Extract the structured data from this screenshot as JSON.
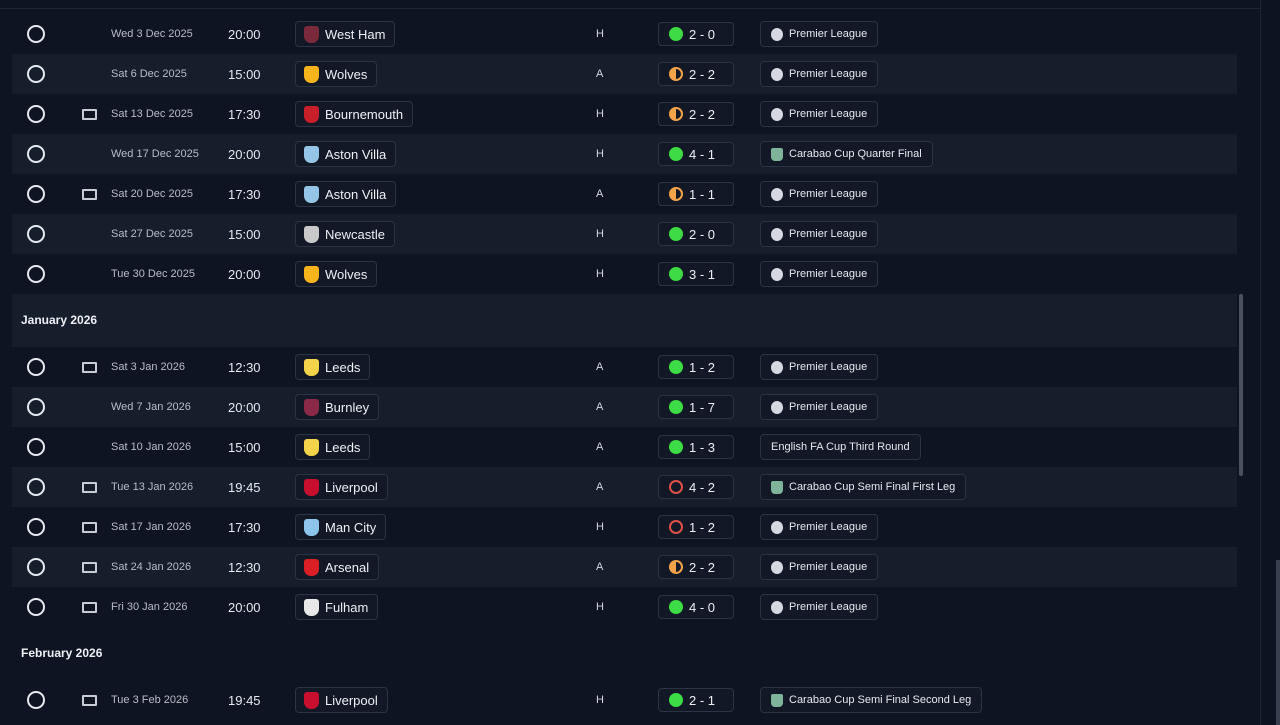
{
  "colors": {
    "win": "#3ddb45",
    "draw": "#f2a34a",
    "loss": "#e0504a"
  },
  "block_dec": [
    {
      "tv": false,
      "date": "Wed 3 Dec 2025",
      "time": "20:00",
      "team": "West Ham",
      "crest": "#7a2a3a",
      "venue": "H",
      "result": "W",
      "score": "2 - 0",
      "comp": "Premier League",
      "comp_icon": "pl"
    },
    {
      "tv": false,
      "date": "Sat 6 Dec 2025",
      "time": "15:00",
      "team": "Wolves",
      "crest": "#f4b41a",
      "venue": "A",
      "result": "D",
      "score": "2 - 2",
      "comp": "Premier League",
      "comp_icon": "pl"
    },
    {
      "tv": true,
      "date": "Sat 13 Dec 2025",
      "time": "17:30",
      "team": "Bournemouth",
      "crest": "#c8202a",
      "venue": "H",
      "result": "D",
      "score": "2 - 2",
      "comp": "Premier League",
      "comp_icon": "pl"
    },
    {
      "tv": false,
      "date": "Wed 17 Dec 2025",
      "time": "20:00",
      "team": "Aston Villa",
      "crest": "#94c4e6",
      "venue": "H",
      "result": "W",
      "score": "4 - 1",
      "comp": "Carabao Cup Quarter Final",
      "comp_icon": "cup"
    },
    {
      "tv": true,
      "date": "Sat 20 Dec 2025",
      "time": "17:30",
      "team": "Aston Villa",
      "crest": "#94c4e6",
      "venue": "A",
      "result": "D",
      "score": "1 - 1",
      "comp": "Premier League",
      "comp_icon": "pl"
    },
    {
      "tv": false,
      "date": "Sat 27 Dec 2025",
      "time": "15:00",
      "team": "Newcastle",
      "crest": "#c9c9c9",
      "venue": "H",
      "result": "W",
      "score": "2 - 0",
      "comp": "Premier League",
      "comp_icon": "pl"
    },
    {
      "tv": false,
      "date": "Tue 30 Dec 2025",
      "time": "20:00",
      "team": "Wolves",
      "crest": "#f4b41a",
      "venue": "H",
      "result": "W",
      "score": "3 - 1",
      "comp": "Premier League",
      "comp_icon": "pl"
    }
  ],
  "month_jan": "January 2026",
  "block_jan": [
    {
      "tv": true,
      "date": "Sat 3 Jan 2026",
      "time": "12:30",
      "team": "Leeds",
      "crest": "#f3d34a",
      "venue": "A",
      "result": "W",
      "score": "1 - 2",
      "comp": "Premier League",
      "comp_icon": "pl"
    },
    {
      "tv": false,
      "date": "Wed 7 Jan 2026",
      "time": "20:00",
      "team": "Burnley",
      "crest": "#8a2a48",
      "venue": "A",
      "result": "W",
      "score": "1 - 7",
      "comp": "Premier League",
      "comp_icon": "pl"
    },
    {
      "tv": false,
      "date": "Sat 10 Jan 2026",
      "time": "15:00",
      "team": "Leeds",
      "crest": "#f3d34a",
      "venue": "A",
      "result": "W",
      "score": "1 - 3",
      "comp": "English FA Cup Third Round",
      "comp_icon": ""
    },
    {
      "tv": true,
      "date": "Tue 13 Jan 2026",
      "time": "19:45",
      "team": "Liverpool",
      "crest": "#c8102e",
      "venue": "A",
      "result": "L",
      "score": "4 - 2",
      "comp": "Carabao Cup Semi Final First Leg",
      "comp_icon": "cup"
    },
    {
      "tv": true,
      "date": "Sat 17 Jan 2026",
      "time": "17:30",
      "team": "Man City",
      "crest": "#8ec5ec",
      "venue": "H",
      "result": "L",
      "score": "1 - 2",
      "comp": "Premier League",
      "comp_icon": "pl"
    },
    {
      "tv": true,
      "date": "Sat 24 Jan 2026",
      "time": "12:30",
      "team": "Arsenal",
      "crest": "#db1f26",
      "venue": "A",
      "result": "D",
      "score": "2 - 2",
      "comp": "Premier League",
      "comp_icon": "pl"
    },
    {
      "tv": true,
      "date": "Fri 30 Jan 2026",
      "time": "20:00",
      "team": "Fulham",
      "crest": "#e8e8e8",
      "venue": "H",
      "result": "W",
      "score": "4 - 0",
      "comp": "Premier League",
      "comp_icon": "pl"
    }
  ],
  "month_feb": "February 2026",
  "block_feb": [
    {
      "tv": true,
      "date": "Tue 3 Feb 2026",
      "time": "19:45",
      "team": "Liverpool",
      "crest": "#c8102e",
      "venue": "H",
      "result": "W",
      "score": "2 - 1",
      "comp": "Carabao Cup Semi Final Second Leg",
      "comp_icon": "cup"
    }
  ]
}
